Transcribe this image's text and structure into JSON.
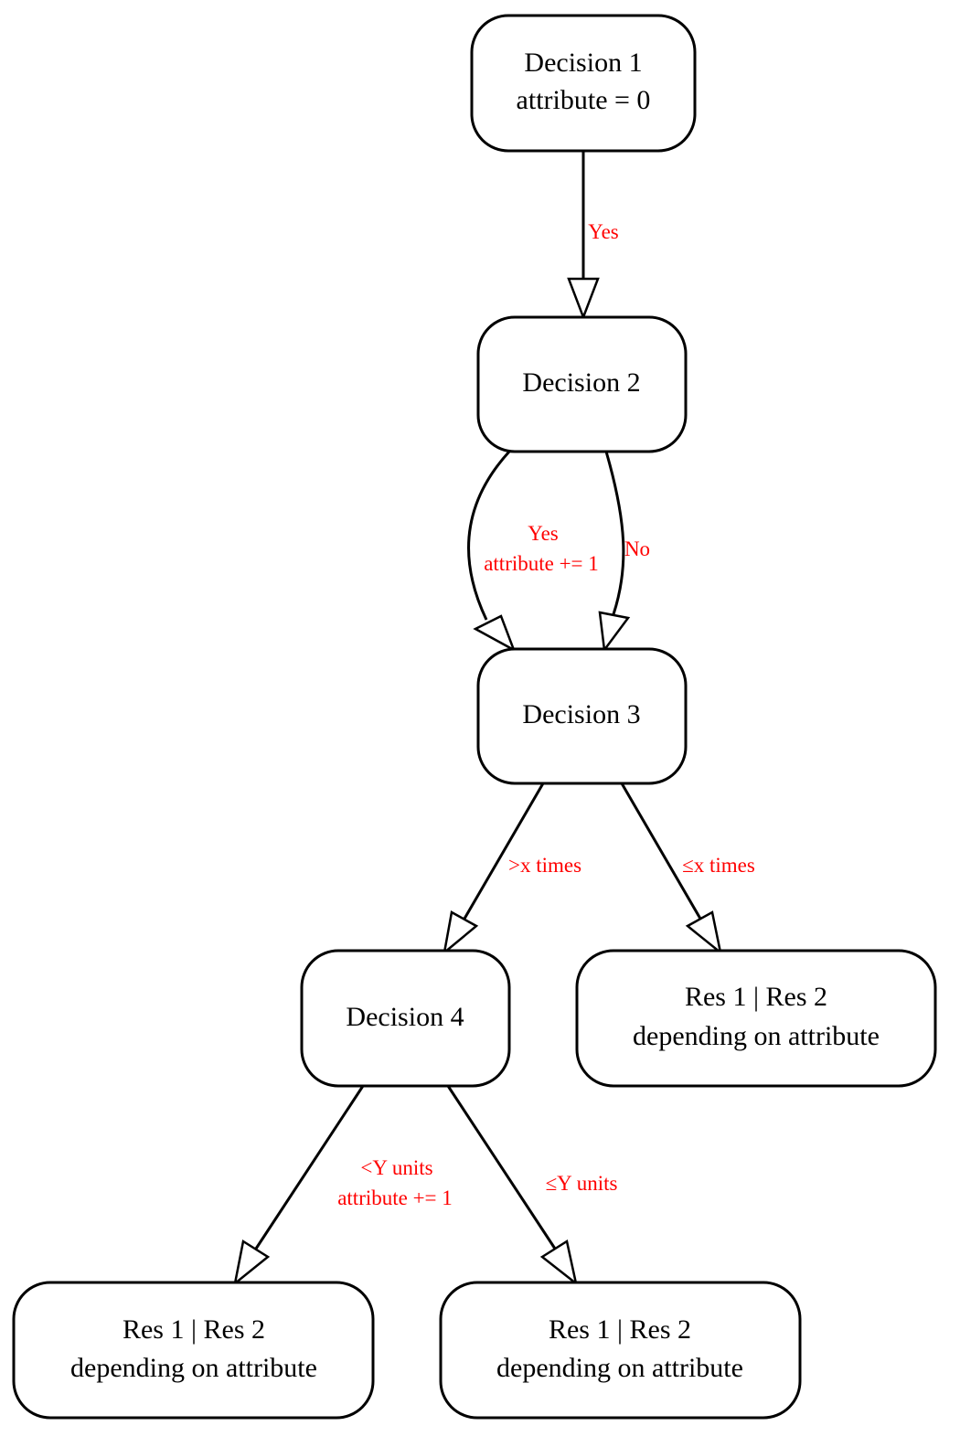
{
  "nodes": {
    "d1": {
      "line1": "Decision 1",
      "line2": "attribute = 0"
    },
    "d2": {
      "line1": "Decision 2"
    },
    "d3": {
      "line1": "Decision 3"
    },
    "d4": {
      "line1": "Decision 4"
    },
    "r1": {
      "line1": "Res 1 | Res 2",
      "line2": "depending on attribute"
    },
    "r2": {
      "line1": "Res 1 | Res 2",
      "line2": "depending on attribute"
    },
    "r3": {
      "line1": "Res 1 | Res 2",
      "line2": "depending on attribute"
    }
  },
  "edges": {
    "d1_d2": {
      "label": "Yes"
    },
    "d2_d3_yes": {
      "line1": "Yes",
      "line2": "attribute += 1"
    },
    "d2_d3_no": {
      "label": "No"
    },
    "d3_d4": {
      "label": ">x times"
    },
    "d3_r1": {
      "label": "≤x times"
    },
    "d4_r2": {
      "line1": "<Y units",
      "line2": "attribute += 1"
    },
    "d4_r3": {
      "label": "≤Y units"
    }
  },
  "colors": {
    "edge_label": "#ff0000",
    "stroke": "#000000",
    "fill": "#ffffff"
  }
}
